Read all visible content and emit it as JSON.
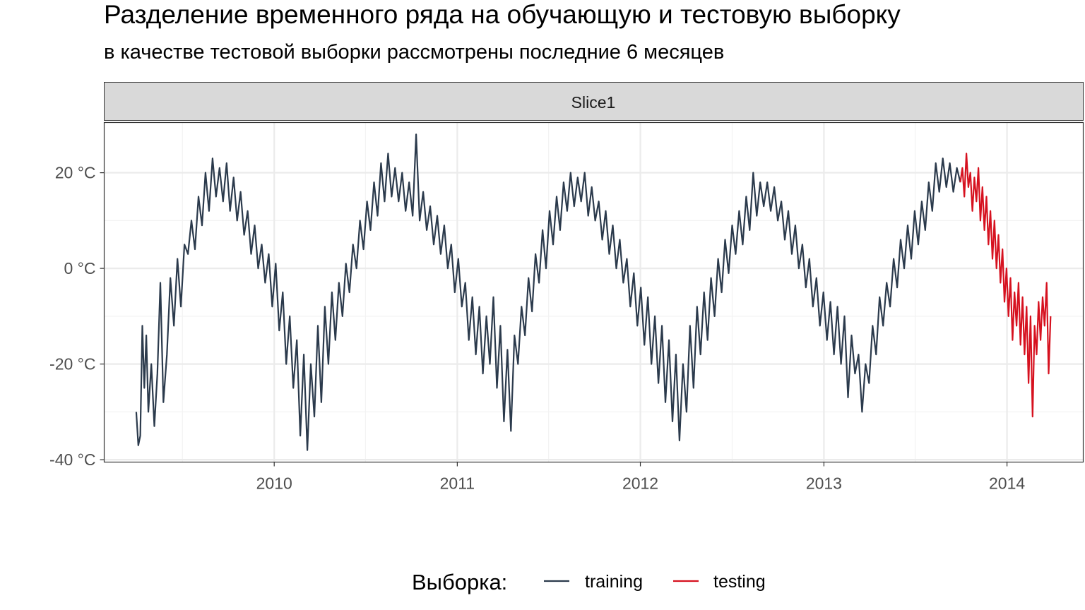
{
  "chart_data": {
    "type": "line",
    "title": "Разделение временного ряда на обучающую и тестовую выборку",
    "subtitle": "в качестве тестовой выборки рассмотрены последние 6 месяцев",
    "facet": "Slice1",
    "xlabel": "",
    "ylabel": "",
    "x_ticks": [
      "2010",
      "2011",
      "2012",
      "2013",
      "2014"
    ],
    "y_ticks": [
      "-40 °C",
      "-20 °C",
      "0 °C",
      "20 °C"
    ],
    "ylim": [
      -40.5,
      30.5
    ],
    "xlim": [
      "2009-01-27",
      "2014-06-02"
    ],
    "grid": true,
    "legend": {
      "title": "Выборка:",
      "position": "bottom",
      "entries": [
        "training",
        "testing"
      ]
    },
    "series": [
      {
        "name": "training",
        "color": "#2b3a4c",
        "points": [
          [
            "2009-04-01",
            -30
          ],
          [
            "2009-04-05",
            -37
          ],
          [
            "2009-04-09",
            -35
          ],
          [
            "2009-04-13",
            -12
          ],
          [
            "2009-04-17",
            -25
          ],
          [
            "2009-04-21",
            -14
          ],
          [
            "2009-04-25",
            -30
          ],
          [
            "2009-05-01",
            -20
          ],
          [
            "2009-05-07",
            -33
          ],
          [
            "2009-05-13",
            -22
          ],
          [
            "2009-05-19",
            -3
          ],
          [
            "2009-05-25",
            -28
          ],
          [
            "2009-06-01",
            -18
          ],
          [
            "2009-06-08",
            -2
          ],
          [
            "2009-06-15",
            -12
          ],
          [
            "2009-06-22",
            2
          ],
          [
            "2009-06-29",
            -8
          ],
          [
            "2009-07-06",
            5
          ],
          [
            "2009-07-13",
            3
          ],
          [
            "2009-07-20",
            10
          ],
          [
            "2009-07-27",
            4
          ],
          [
            "2009-08-03",
            15
          ],
          [
            "2009-08-10",
            9
          ],
          [
            "2009-08-17",
            20
          ],
          [
            "2009-08-24",
            12
          ],
          [
            "2009-08-31",
            23
          ],
          [
            "2009-09-07",
            15
          ],
          [
            "2009-09-14",
            21
          ],
          [
            "2009-09-21",
            14
          ],
          [
            "2009-09-28",
            22
          ],
          [
            "2009-10-05",
            12
          ],
          [
            "2009-10-12",
            19
          ],
          [
            "2009-10-19",
            10
          ],
          [
            "2009-10-26",
            16
          ],
          [
            "2009-11-02",
            7
          ],
          [
            "2009-11-09",
            12
          ],
          [
            "2009-11-16",
            3
          ],
          [
            "2009-11-23",
            9
          ],
          [
            "2009-11-30",
            0
          ],
          [
            "2009-12-07",
            5
          ],
          [
            "2009-12-14",
            -3
          ],
          [
            "2009-12-21",
            3
          ],
          [
            "2009-12-28",
            -8
          ],
          [
            "2010-01-04",
            1
          ],
          [
            "2010-01-11",
            -13
          ],
          [
            "2010-01-18",
            -5
          ],
          [
            "2010-01-25",
            -20
          ],
          [
            "2010-02-01",
            -10
          ],
          [
            "2010-02-08",
            -25
          ],
          [
            "2010-02-15",
            -15
          ],
          [
            "2010-02-22",
            -35
          ],
          [
            "2010-03-01",
            -18
          ],
          [
            "2010-03-08",
            -38
          ],
          [
            "2010-03-15",
            -20
          ],
          [
            "2010-03-22",
            -31
          ],
          [
            "2010-03-29",
            -12
          ],
          [
            "2010-04-05",
            -28
          ],
          [
            "2010-04-12",
            -8
          ],
          [
            "2010-04-19",
            -20
          ],
          [
            "2010-04-26",
            -5
          ],
          [
            "2010-05-03",
            -15
          ],
          [
            "2010-05-10",
            -3
          ],
          [
            "2010-05-17",
            -10
          ],
          [
            "2010-05-24",
            1
          ],
          [
            "2010-05-31",
            -5
          ],
          [
            "2010-06-07",
            5
          ],
          [
            "2010-06-14",
            0
          ],
          [
            "2010-06-21",
            10
          ],
          [
            "2010-06-28",
            4
          ],
          [
            "2010-07-05",
            14
          ],
          [
            "2010-07-12",
            8
          ],
          [
            "2010-07-19",
            18
          ],
          [
            "2010-07-26",
            11
          ],
          [
            "2010-08-02",
            22
          ],
          [
            "2010-08-09",
            14
          ],
          [
            "2010-08-16",
            24
          ],
          [
            "2010-08-23",
            15
          ],
          [
            "2010-08-30",
            21
          ],
          [
            "2010-09-06",
            14
          ],
          [
            "2010-09-13",
            20
          ],
          [
            "2010-09-20",
            12
          ],
          [
            "2010-09-27",
            18
          ],
          [
            "2010-10-04",
            11
          ],
          [
            "2010-10-11",
            28
          ],
          [
            "2010-10-18",
            10
          ],
          [
            "2010-10-25",
            16
          ],
          [
            "2010-11-01",
            8
          ],
          [
            "2010-11-08",
            13
          ],
          [
            "2010-11-15",
            5
          ],
          [
            "2010-11-22",
            11
          ],
          [
            "2010-11-29",
            3
          ],
          [
            "2010-12-06",
            9
          ],
          [
            "2010-12-13",
            0
          ],
          [
            "2010-12-20",
            5
          ],
          [
            "2010-12-27",
            -5
          ],
          [
            "2011-01-03",
            2
          ],
          [
            "2011-01-10",
            -8
          ],
          [
            "2011-01-17",
            -3
          ],
          [
            "2011-01-24",
            -15
          ],
          [
            "2011-01-31",
            -6
          ],
          [
            "2011-02-07",
            -18
          ],
          [
            "2011-02-14",
            -8
          ],
          [
            "2011-02-21",
            -22
          ],
          [
            "2011-02-28",
            -10
          ],
          [
            "2011-03-07",
            -20
          ],
          [
            "2011-03-14",
            -6
          ],
          [
            "2011-03-21",
            -25
          ],
          [
            "2011-03-28",
            -12
          ],
          [
            "2011-04-04",
            -32
          ],
          [
            "2011-04-11",
            -17
          ],
          [
            "2011-04-18",
            -34
          ],
          [
            "2011-04-25",
            -14
          ],
          [
            "2011-05-02",
            -20
          ],
          [
            "2011-05-09",
            -8
          ],
          [
            "2011-05-16",
            -14
          ],
          [
            "2011-05-23",
            -2
          ],
          [
            "2011-05-30",
            -9
          ],
          [
            "2011-06-06",
            3
          ],
          [
            "2011-06-13",
            -3
          ],
          [
            "2011-06-20",
            8
          ],
          [
            "2011-06-27",
            0
          ],
          [
            "2011-07-04",
            12
          ],
          [
            "2011-07-11",
            5
          ],
          [
            "2011-07-18",
            15
          ],
          [
            "2011-07-25",
            8
          ],
          [
            "2011-08-01",
            18
          ],
          [
            "2011-08-08",
            12
          ],
          [
            "2011-08-15",
            20
          ],
          [
            "2011-08-22",
            13
          ],
          [
            "2011-08-29",
            19
          ],
          [
            "2011-09-05",
            14
          ],
          [
            "2011-09-12",
            20
          ],
          [
            "2011-09-19",
            11
          ],
          [
            "2011-09-26",
            17
          ],
          [
            "2011-10-03",
            10
          ],
          [
            "2011-10-10",
            14
          ],
          [
            "2011-10-17",
            6
          ],
          [
            "2011-10-24",
            12
          ],
          [
            "2011-10-31",
            3
          ],
          [
            "2011-11-07",
            9
          ],
          [
            "2011-11-14",
            0
          ],
          [
            "2011-11-21",
            6
          ],
          [
            "2011-11-28",
            -3
          ],
          [
            "2011-12-05",
            2
          ],
          [
            "2011-12-12",
            -8
          ],
          [
            "2011-12-19",
            -1
          ],
          [
            "2011-12-26",
            -12
          ],
          [
            "2012-01-02",
            -4
          ],
          [
            "2012-01-09",
            -16
          ],
          [
            "2012-01-16",
            -6
          ],
          [
            "2012-01-23",
            -20
          ],
          [
            "2012-01-30",
            -10
          ],
          [
            "2012-02-06",
            -24
          ],
          [
            "2012-02-13",
            -12
          ],
          [
            "2012-02-20",
            -28
          ],
          [
            "2012-02-27",
            -15
          ],
          [
            "2012-03-05",
            -32
          ],
          [
            "2012-03-12",
            -18
          ],
          [
            "2012-03-19",
            -36
          ],
          [
            "2012-03-26",
            -20
          ],
          [
            "2012-04-02",
            -30
          ],
          [
            "2012-04-09",
            -12
          ],
          [
            "2012-04-16",
            -25
          ],
          [
            "2012-04-23",
            -8
          ],
          [
            "2012-04-30",
            -18
          ],
          [
            "2012-05-07",
            -5
          ],
          [
            "2012-05-14",
            -15
          ],
          [
            "2012-05-21",
            -2
          ],
          [
            "2012-05-28",
            -10
          ],
          [
            "2012-06-04",
            2
          ],
          [
            "2012-06-11",
            -5
          ],
          [
            "2012-06-18",
            6
          ],
          [
            "2012-06-25",
            -1
          ],
          [
            "2012-07-02",
            9
          ],
          [
            "2012-07-09",
            3
          ],
          [
            "2012-07-16",
            12
          ],
          [
            "2012-07-23",
            5
          ],
          [
            "2012-07-30",
            15
          ],
          [
            "2012-08-06",
            8
          ],
          [
            "2012-08-13",
            20
          ],
          [
            "2012-08-20",
            11
          ],
          [
            "2012-08-27",
            18
          ],
          [
            "2012-09-03",
            13
          ],
          [
            "2012-09-10",
            18
          ],
          [
            "2012-09-17",
            12
          ],
          [
            "2012-09-24",
            17
          ],
          [
            "2012-10-01",
            10
          ],
          [
            "2012-10-08",
            14
          ],
          [
            "2012-10-15",
            6
          ],
          [
            "2012-10-22",
            12
          ],
          [
            "2012-10-29",
            3
          ],
          [
            "2012-11-05",
            9
          ],
          [
            "2012-11-12",
            0
          ],
          [
            "2012-11-19",
            5
          ],
          [
            "2012-11-26",
            -4
          ],
          [
            "2012-12-03",
            2
          ],
          [
            "2012-12-10",
            -8
          ],
          [
            "2012-12-17",
            -2
          ],
          [
            "2012-12-24",
            -12
          ],
          [
            "2012-12-31",
            -5
          ],
          [
            "2013-01-07",
            -15
          ],
          [
            "2013-01-14",
            -7
          ],
          [
            "2013-01-21",
            -18
          ],
          [
            "2013-01-28",
            -8
          ],
          [
            "2013-02-04",
            -20
          ],
          [
            "2013-02-11",
            -10
          ],
          [
            "2013-02-18",
            -27
          ],
          [
            "2013-02-25",
            -14
          ],
          [
            "2013-03-04",
            -22
          ],
          [
            "2013-03-11",
            -18
          ],
          [
            "2013-03-18",
            -30
          ],
          [
            "2013-03-25",
            -20
          ],
          [
            "2013-04-01",
            -24
          ],
          [
            "2013-04-08",
            -12
          ],
          [
            "2013-04-15",
            -18
          ],
          [
            "2013-04-22",
            -6
          ],
          [
            "2013-04-29",
            -12
          ],
          [
            "2013-05-06",
            -3
          ],
          [
            "2013-05-13",
            -8
          ],
          [
            "2013-05-20",
            2
          ],
          [
            "2013-05-27",
            -4
          ],
          [
            "2013-06-03",
            6
          ],
          [
            "2013-06-10",
            0
          ],
          [
            "2013-06-17",
            9
          ],
          [
            "2013-06-24",
            2
          ],
          [
            "2013-07-01",
            12
          ],
          [
            "2013-07-08",
            5
          ],
          [
            "2013-07-15",
            14
          ],
          [
            "2013-07-22",
            8
          ],
          [
            "2013-07-29",
            18
          ],
          [
            "2013-08-05",
            12
          ],
          [
            "2013-08-12",
            22
          ],
          [
            "2013-08-19",
            16
          ],
          [
            "2013-08-26",
            23
          ],
          [
            "2013-09-02",
            17
          ],
          [
            "2013-09-09",
            22
          ],
          [
            "2013-09-16",
            16
          ],
          [
            "2013-09-23",
            21
          ],
          [
            "2013-09-30",
            18
          ]
        ]
      },
      {
        "name": "testing",
        "color": "#d6111f",
        "points": [
          [
            "2013-09-30",
            18
          ],
          [
            "2013-10-04",
            21
          ],
          [
            "2013-10-08",
            15
          ],
          [
            "2013-10-12",
            24
          ],
          [
            "2013-10-16",
            17
          ],
          [
            "2013-10-20",
            20
          ],
          [
            "2013-10-24",
            12
          ],
          [
            "2013-10-28",
            19
          ],
          [
            "2013-11-01",
            14
          ],
          [
            "2013-11-05",
            21
          ],
          [
            "2013-11-09",
            10
          ],
          [
            "2013-11-13",
            17
          ],
          [
            "2013-11-17",
            8
          ],
          [
            "2013-11-21",
            15
          ],
          [
            "2013-11-25",
            5
          ],
          [
            "2013-11-29",
            12
          ],
          [
            "2013-12-03",
            2
          ],
          [
            "2013-12-07",
            10
          ],
          [
            "2013-12-11",
            0
          ],
          [
            "2013-12-15",
            7
          ],
          [
            "2013-12-19",
            -3
          ],
          [
            "2013-12-23",
            4
          ],
          [
            "2013-12-27",
            -7
          ],
          [
            "2013-12-31",
            0
          ],
          [
            "2014-01-04",
            -10
          ],
          [
            "2014-01-08",
            -2
          ],
          [
            "2014-01-12",
            -15
          ],
          [
            "2014-01-16",
            -5
          ],
          [
            "2014-01-20",
            -12
          ],
          [
            "2014-01-24",
            -3
          ],
          [
            "2014-01-28",
            -16
          ],
          [
            "2014-02-01",
            -6
          ],
          [
            "2014-02-05",
            -18
          ],
          [
            "2014-02-09",
            -8
          ],
          [
            "2014-02-13",
            -24
          ],
          [
            "2014-02-17",
            -10
          ],
          [
            "2014-02-21",
            -31
          ],
          [
            "2014-02-25",
            -12
          ],
          [
            "2014-03-01",
            -18
          ],
          [
            "2014-03-05",
            -7
          ],
          [
            "2014-03-09",
            -15
          ],
          [
            "2014-03-13",
            -6
          ],
          [
            "2014-03-17",
            -12
          ],
          [
            "2014-03-21",
            -3
          ],
          [
            "2014-03-25",
            -22
          ],
          [
            "2014-03-29",
            -10
          ]
        ]
      }
    ]
  }
}
